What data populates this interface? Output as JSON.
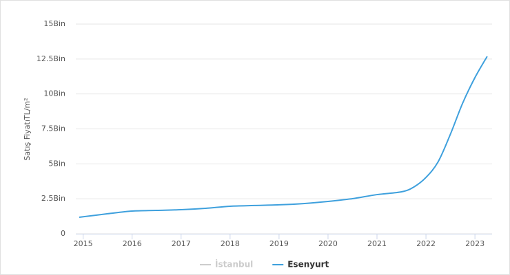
{
  "chart_data": {
    "type": "line",
    "y_label": "Satış FiyatıTL/m²",
    "xlim": [
      2014.85,
      2023.35
    ],
    "xticks": [
      2015,
      2016,
      2017,
      2018,
      2019,
      2020,
      2021,
      2022,
      2023
    ],
    "ylim": [
      0,
      15000
    ],
    "yticks": [
      0,
      {
        "value": 2500,
        "label": "2.5Bin"
      },
      {
        "value": 5000,
        "label": "5Bin"
      },
      {
        "value": 7500,
        "label": "7.5Bin"
      },
      {
        "value": 10000,
        "label": "10Bin"
      },
      {
        "value": 12500,
        "label": "12.5Bin"
      },
      {
        "value": 15000,
        "label": "15Bin"
      }
    ],
    "grid": true,
    "series": [
      {
        "name": "İstanbul",
        "color": "#bbbbbb",
        "visible": false,
        "x": [],
        "values": []
      },
      {
        "name": "Esenyurt",
        "color": "#3ea0dd",
        "visible": true,
        "x": [
          2014.92,
          2015.5,
          2016,
          2016.5,
          2017,
          2017.5,
          2018,
          2018.5,
          2019,
          2019.5,
          2020,
          2020.5,
          2021,
          2021.5,
          2021.75,
          2022,
          2022.25,
          2022.5,
          2022.75,
          2023,
          2023.25
        ],
        "values": [
          1180,
          1430,
          1620,
          1670,
          1720,
          1820,
          1970,
          2020,
          2070,
          2160,
          2310,
          2510,
          2800,
          3000,
          3340,
          4030,
          5160,
          7130,
          9350,
          11170,
          12690
        ]
      }
    ]
  }
}
